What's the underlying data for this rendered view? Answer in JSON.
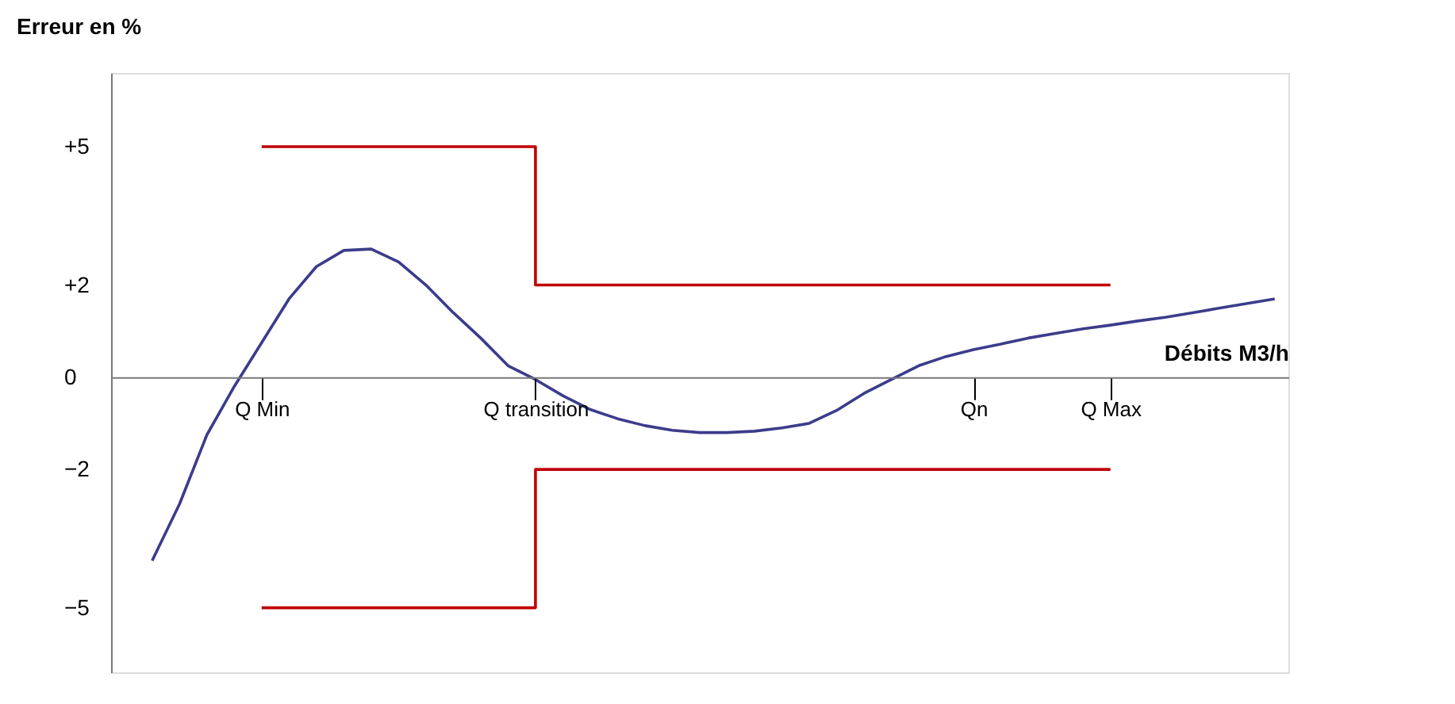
{
  "chart_data": {
    "type": "line",
    "ylabel": "Erreur en %",
    "xlabel": "Débits M3/h",
    "categories": [
      null,
      null,
      null,
      null,
      null,
      "Q Min",
      null,
      null,
      null,
      null,
      null,
      null,
      null,
      null,
      null,
      "Q transition",
      null,
      null,
      null,
      null,
      null,
      null,
      null,
      null,
      null,
      null,
      null,
      null,
      null,
      null,
      null,
      "Qn",
      null,
      null,
      null,
      null,
      "Q Max",
      null,
      null,
      null,
      null,
      null,
      null
    ],
    "ylim": [
      -6.4,
      6.6
    ],
    "yticks": [
      {
        "value": 5,
        "label": "+5"
      },
      {
        "value": 2,
        "label": "+2"
      },
      0,
      -2,
      -5
    ],
    "grid": false,
    "line_style": "solid",
    "marker": "none",
    "series": [
      {
        "color": "#3c3c8c",
        "values": [
          null,
          -3.98,
          -2.75,
          -1.25,
          -0.2,
          0.75,
          1.7,
          2.4,
          2.75,
          2.78,
          2.5,
          2.0,
          1.4,
          0.85,
          0.25,
          -0.05,
          -0.4,
          -0.7,
          -0.9,
          -1.05,
          -1.15,
          -1.2,
          -1.2,
          -1.17,
          -1.1,
          -1.0,
          -0.72,
          -0.35,
          -0.05,
          0.25,
          0.45,
          0.6,
          0.72,
          0.85,
          0.95,
          1.05,
          1.13,
          1.22,
          1.3,
          1.4,
          1.5,
          1.6,
          1.7
        ]
      },
      {
        "type": "step",
        "color": "#c00000",
        "values": [
          null,
          null,
          null,
          null,
          null,
          5,
          5,
          5,
          5,
          5,
          5,
          5,
          5,
          5,
          5,
          2,
          2,
          2,
          2,
          2,
          2,
          2,
          2,
          2,
          2,
          2,
          2,
          2,
          2,
          2,
          2,
          2,
          2,
          2,
          2,
          2,
          2,
          null,
          null,
          null,
          null,
          null,
          null
        ]
      },
      {
        "type": "step",
        "color": "#c00000",
        "values": [
          null,
          null,
          null,
          null,
          null,
          -5,
          -5,
          -5,
          -5,
          -5,
          -5,
          -5,
          -5,
          -5,
          -5,
          -2,
          -2,
          -2,
          -2,
          -2,
          -2,
          -2,
          -2,
          -2,
          -2,
          -2,
          -2,
          -2,
          -2,
          -2,
          -2,
          -2,
          -2,
          -2,
          -2,
          -2,
          -2,
          null,
          null,
          null,
          null,
          null,
          null
        ]
      }
    ]
  }
}
